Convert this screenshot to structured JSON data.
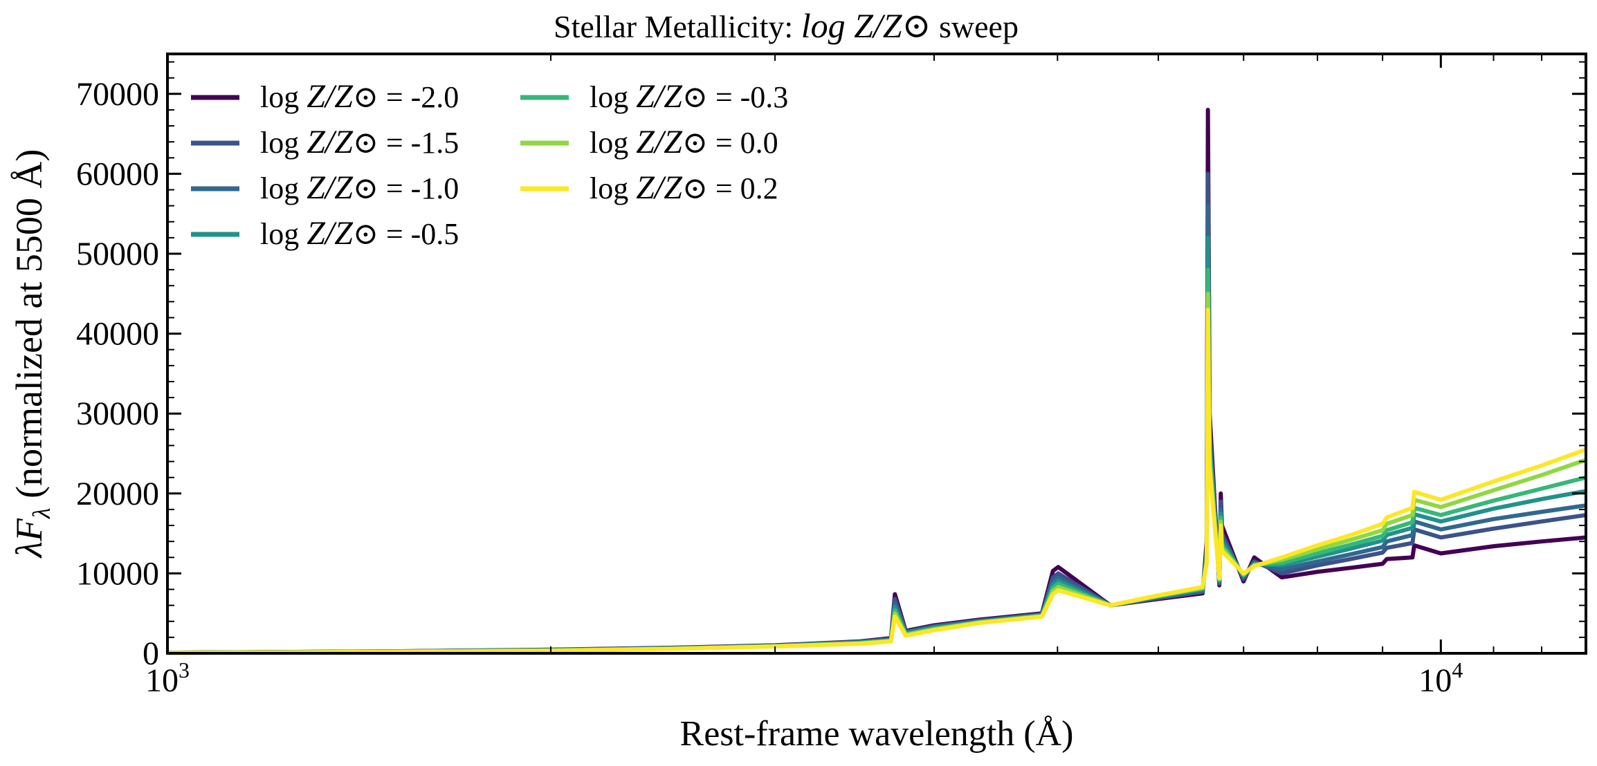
{
  "chart_data": {
    "type": "line",
    "title_prefix": "Stellar Metallicity: ",
    "title_math": "log Z/Z⊙",
    "title_suffix": " sweep",
    "ylabel_symbol": "λF",
    "ylabel_subscript": "λ",
    "ylabel_text": " (normalized at 5500 Å)",
    "xlabel": "Rest-frame wavelength (Å)",
    "x_scale": "log",
    "xlim": [
      1000,
      13000
    ],
    "ylim": [
      0,
      75000
    ],
    "x_ticks": [
      {
        "value": 1000,
        "base": "10",
        "exp": "3"
      },
      {
        "value": 10000,
        "base": "10",
        "exp": "4"
      }
    ],
    "y_ticks": [
      0,
      10000,
      20000,
      30000,
      40000,
      50000,
      60000,
      70000
    ],
    "y_tick_labels": [
      "0",
      "10000",
      "20000",
      "30000",
      "40000",
      "50000",
      "60000",
      "70000"
    ],
    "legend_position": "top-left",
    "legend_prefix": "log Z/Z⊙ = ",
    "series": [
      {
        "name": "log Z/Z⊙ = -2.0",
        "value_label": "-2.0",
        "color": "#440154",
        "x": [
          1000,
          1500,
          2000,
          2500,
          3000,
          3500,
          3700,
          3726,
          3800,
          4000,
          4340,
          4861,
          4959,
          5007,
          5500,
          6000,
          6500,
          6548,
          6563,
          6583,
          6700,
          6717,
          6731,
          7000,
          7136,
          7500,
          8000,
          8500,
          9000,
          9069,
          9500,
          9531,
          10000,
          11000,
          12000,
          13000
        ],
        "y": [
          80,
          250,
          450,
          700,
          1000,
          1500,
          1900,
          7400,
          2800,
          3500,
          4200,
          5000,
          10300,
          10800,
          6000,
          6800,
          7500,
          14000,
          68000,
          30000,
          8500,
          20000,
          16000,
          9000,
          12000,
          9500,
          10200,
          10700,
          11200,
          11800,
          12000,
          13500,
          12500,
          13400,
          14000,
          14500
        ]
      },
      {
        "name": "log Z/Z⊙ = -1.5",
        "value_label": "-1.5",
        "color": "#3b528b",
        "x": [
          1000,
          1500,
          2000,
          2500,
          3000,
          3500,
          3700,
          3726,
          3800,
          4000,
          4340,
          4861,
          4959,
          5007,
          5500,
          6000,
          6500,
          6548,
          6563,
          6583,
          6700,
          6717,
          6731,
          7000,
          7136,
          7500,
          8000,
          8500,
          9000,
          9069,
          9500,
          9531,
          10000,
          11000,
          12000,
          13000
        ],
        "y": [
          75,
          240,
          430,
          680,
          980,
          1450,
          1800,
          6800,
          2700,
          3400,
          4100,
          4900,
          9500,
          10000,
          6000,
          6900,
          7700,
          13000,
          60000,
          28000,
          8700,
          19000,
          15000,
          9300,
          11500,
          10000,
          11000,
          11800,
          12600,
          13200,
          13800,
          15500,
          14500,
          15600,
          16500,
          17300
        ]
      },
      {
        "name": "log Z/Z⊙ = -1.0",
        "value_label": "-1.0",
        "color": "#31688e",
        "x": [
          1000,
          1500,
          2000,
          2500,
          3000,
          3500,
          3700,
          3726,
          3800,
          4000,
          4340,
          4861,
          4959,
          5007,
          5500,
          6000,
          6500,
          6548,
          6563,
          6583,
          6700,
          6717,
          6731,
          7000,
          7136,
          7500,
          8000,
          8500,
          9000,
          9069,
          9500,
          9531,
          10000,
          11000,
          12000,
          13000
        ],
        "y": [
          70,
          230,
          410,
          650,
          950,
          1400,
          1700,
          6200,
          2600,
          3300,
          4000,
          4800,
          9000,
          9500,
          6000,
          7000,
          7800,
          12500,
          56000,
          27000,
          8900,
          18000,
          14500,
          9500,
          11300,
          10500,
          11500,
          12400,
          13300,
          14000,
          14800,
          16500,
          15500,
          16800,
          17700,
          18500
        ]
      },
      {
        "name": "log Z/Z⊙ = -0.5",
        "value_label": "-0.5",
        "color": "#21918c",
        "x": [
          1000,
          1500,
          2000,
          2500,
          3000,
          3500,
          3700,
          3726,
          3800,
          4000,
          4340,
          4861,
          4959,
          5007,
          5500,
          6000,
          6500,
          6548,
          6563,
          6583,
          6700,
          6717,
          6731,
          7000,
          7136,
          7500,
          8000,
          8500,
          9000,
          9069,
          9500,
          9531,
          10000,
          11000,
          12000,
          13000
        ],
        "y": [
          65,
          220,
          390,
          620,
          920,
          1350,
          1650,
          5800,
          2500,
          3200,
          3950,
          4750,
          8600,
          9100,
          6000,
          7100,
          8000,
          12000,
          52000,
          26000,
          9100,
          17500,
          14000,
          9700,
          11200,
          11000,
          12100,
          13100,
          14100,
          14800,
          15700,
          17400,
          16500,
          18100,
          19300,
          20300
        ]
      },
      {
        "name": "log Z/Z⊙ = -0.3",
        "value_label": "-0.3",
        "color": "#35b779",
        "x": [
          1000,
          1500,
          2000,
          2500,
          3000,
          3500,
          3700,
          3726,
          3800,
          4000,
          4340,
          4861,
          4959,
          5007,
          5500,
          6000,
          6500,
          6548,
          6563,
          6583,
          6700,
          6717,
          6731,
          7000,
          7136,
          7500,
          8000,
          8500,
          9000,
          9069,
          9500,
          9531,
          10000,
          11000,
          12000,
          13000
        ],
        "y": [
          60,
          210,
          370,
          600,
          900,
          1300,
          1600,
          5400,
          2400,
          3100,
          3900,
          4700,
          8200,
          8700,
          6000,
          7150,
          8100,
          11800,
          48000,
          25000,
          9200,
          17000,
          13600,
          9800,
          11100,
          11300,
          12500,
          13600,
          14700,
          15400,
          16400,
          18200,
          17300,
          19100,
          20600,
          22000
        ]
      },
      {
        "name": "log Z/Z⊙ = 0.0",
        "value_label": "0.0",
        "color": "#90d743",
        "x": [
          1000,
          1500,
          2000,
          2500,
          3000,
          3500,
          3700,
          3726,
          3800,
          4000,
          4340,
          4861,
          4959,
          5007,
          5500,
          6000,
          6500,
          6548,
          6563,
          6583,
          6700,
          6717,
          6731,
          7000,
          7136,
          7500,
          8000,
          8500,
          9000,
          9069,
          9500,
          9531,
          10000,
          11000,
          12000,
          13000
        ],
        "y": [
          55,
          200,
          350,
          580,
          880,
          1250,
          1550,
          5000,
          2300,
          3000,
          3850,
          4650,
          7800,
          8300,
          6000,
          7200,
          8200,
          11500,
          45000,
          24000,
          9300,
          16500,
          13200,
          9900,
          11000,
          11700,
          13000,
          14200,
          15400,
          16200,
          17300,
          19200,
          18300,
          20400,
          22300,
          24200
        ]
      },
      {
        "name": "log Z/Z⊙ = 0.2",
        "value_label": "0.2",
        "color": "#fde725",
        "x": [
          1000,
          1500,
          2000,
          2500,
          3000,
          3500,
          3700,
          3726,
          3800,
          4000,
          4340,
          4861,
          4959,
          5007,
          5500,
          6000,
          6500,
          6548,
          6563,
          6583,
          6700,
          6717,
          6731,
          7000,
          7136,
          7500,
          8000,
          8500,
          9000,
          9069,
          9500,
          9531,
          10000,
          11000,
          12000,
          13000
        ],
        "y": [
          50,
          190,
          330,
          560,
          860,
          1200,
          1500,
          4600,
          2200,
          2900,
          3800,
          4600,
          7400,
          7900,
          6000,
          7250,
          8300,
          11200,
          43000,
          23000,
          9400,
          16000,
          12800,
          10000,
          10900,
          12000,
          13500,
          14800,
          16200,
          17000,
          18200,
          20200,
          19200,
          21500,
          23500,
          25500
        ]
      }
    ]
  }
}
